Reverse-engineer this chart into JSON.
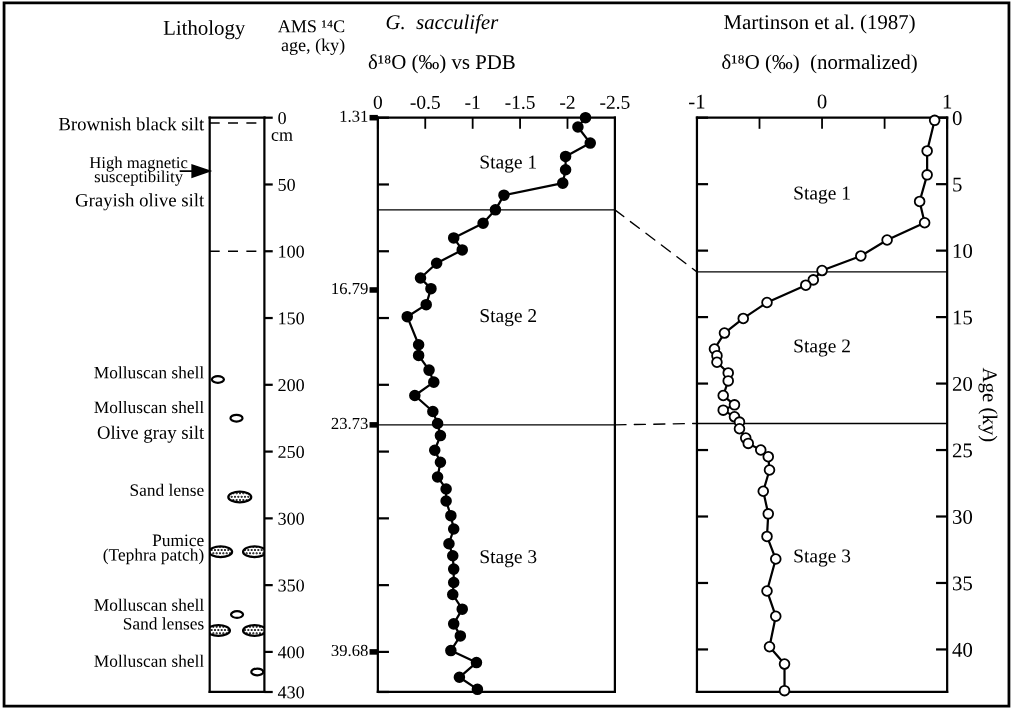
{
  "chart_data": [
    {
      "type": "other",
      "title": "Lithology",
      "annotations": [
        "cm",
        "Brownish black silt",
        "High magnetic\nsusceptibility",
        "Grayish olive silt",
        "Molluscan shell",
        "Molluscan shell",
        "Olive gray silt",
        "Sand lense",
        "Pumice\n(Tephra patch)",
        "Molluscan shell",
        "Sand lenses",
        "Molluscan shell"
      ]
    },
    {
      "type": "line",
      "title": "G.  sacculifer",
      "xlabel": "δ¹⁸O (‰) vs PDB",
      "ylabel": "AMS ¹⁴C\nage, (ky)",
      "marker": "circle",
      "xlim": [
        0,
        -2.5
      ],
      "xticks": [
        0,
        -0.5,
        -1,
        -1.5,
        -2,
        -2.5
      ],
      "ylim": [
        430,
        0
      ],
      "yticks": [
        0,
        50,
        100,
        150,
        200,
        250,
        300,
        350,
        400,
        430
      ],
      "series": [
        {
          "color": "#000000",
          "x": [
            -2.19,
            -2.11,
            -2.24,
            -1.98,
            -1.98,
            -1.95,
            -1.33,
            -1.24,
            -1.11,
            -0.8,
            -0.89,
            -0.62,
            -0.45,
            -0.56,
            -0.51,
            -0.31,
            -0.43,
            -0.43,
            -0.54,
            -0.59,
            -0.39,
            -0.58,
            -0.63,
            -0.66,
            -0.6,
            -0.66,
            -0.63,
            -0.72,
            -0.72,
            -0.77,
            -0.8,
            -0.75,
            -0.79,
            -0.8,
            -0.8,
            -0.79,
            -0.89,
            -0.8,
            -0.87,
            -0.77,
            -1.04,
            -0.86,
            -1.05
          ],
          "values": [
            0,
            7,
            19,
            29,
            39,
            49,
            58,
            69,
            79,
            90,
            99,
            109,
            120,
            128,
            140,
            149,
            170,
            178,
            189,
            198,
            208,
            220,
            229,
            238,
            249,
            258,
            269,
            278,
            287,
            298,
            308,
            319,
            328,
            338,
            348,
            357,
            368,
            379,
            388,
            399,
            408,
            419,
            428
          ]
        }
      ],
      "ref_lines": [
        {
          "axis": "y",
          "value": 69
        },
        {
          "axis": "y",
          "value": 230
        }
      ],
      "annotations": [
        "1.31",
        "16.79",
        "23.73",
        "39.68",
        "Stage 1",
        "Stage 2",
        "Stage 3"
      ]
    },
    {
      "type": "line",
      "title": "Martinson et al. (1987)",
      "xlabel": "δ¹⁸O (‰)  (normalized)",
      "ylabel": "Age (ky)",
      "marker": "circle",
      "xlim": [
        -1,
        1
      ],
      "xticks": [
        -1,
        {
          "value": -0.5,
          "label": null
        },
        0,
        {
          "value": 0.5,
          "label": null
        },
        1
      ],
      "ylim": [
        43.2,
        0
      ],
      "yticks": [
        0,
        5,
        10,
        15,
        20,
        25,
        30,
        35,
        40
      ],
      "series": [
        {
          "color": "#000000",
          "x": [
            0.9,
            0.84,
            0.84,
            0.78,
            0.82,
            0.52,
            0.31,
            0.0,
            -0.07,
            -0.13,
            -0.44,
            -0.63,
            -0.78,
            -0.86,
            -0.84,
            -0.84,
            -0.75,
            -0.75,
            -0.79,
            -0.7,
            -0.79,
            -0.7,
            -0.66,
            -0.66,
            -0.61,
            -0.59,
            -0.49,
            -0.43,
            -0.42,
            -0.47,
            -0.43,
            -0.44,
            -0.37,
            -0.44,
            -0.37,
            -0.42,
            -0.3,
            -0.3
          ],
          "values": [
            0.2,
            2.5,
            4.3,
            6.3,
            7.9,
            9.2,
            10.4,
            11.5,
            12.2,
            12.6,
            13.9,
            15.1,
            16.2,
            17.4,
            17.9,
            18.4,
            19.2,
            19.8,
            20.9,
            21.6,
            22.0,
            22.5,
            22.9,
            23.4,
            24.1,
            24.5,
            25.0,
            25.5,
            26.5,
            28.1,
            29.8,
            31.5,
            33.2,
            35.6,
            37.5,
            39.8,
            41.1,
            43.1
          ]
        }
      ],
      "ref_lines": [
        {
          "axis": "y",
          "value": 11.6
        },
        {
          "axis": "y",
          "value": 23.0
        }
      ],
      "annotations": [
        "Stage 1",
        "Stage 2",
        "Stage 3"
      ]
    }
  ]
}
